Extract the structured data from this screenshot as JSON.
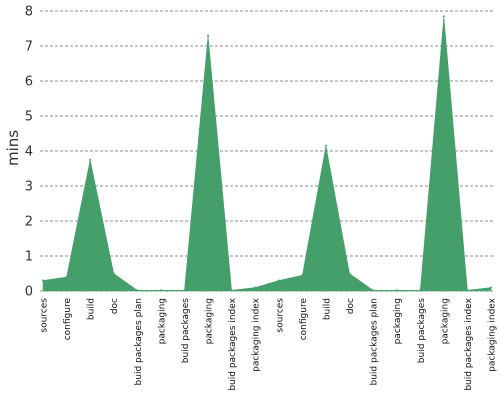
{
  "chart_data": {
    "type": "area",
    "ylabel": "mins",
    "ylim": [
      0,
      8
    ],
    "yticks": [
      "0",
      "1",
      "2",
      "3",
      "4",
      "5",
      "6",
      "7",
      "8"
    ],
    "grid": "horizontal dashed",
    "fill_color": "#449f6b",
    "grid_color": "#666666",
    "categories": [
      "sources",
      "configure",
      "build",
      "doc",
      "buid packages plan",
      "packaging",
      "buid packages",
      "packaging",
      "buid packages index",
      "packaging index",
      "sources",
      "configure",
      "build",
      "doc",
      "buid packages plan",
      "packaging",
      "buid packages",
      "packaging",
      "buid packages index",
      "packaging index"
    ],
    "values": [
      0.3,
      0.4,
      3.75,
      0.5,
      0.02,
      0.02,
      0.02,
      7.3,
      0.02,
      0.1,
      0.3,
      0.45,
      4.15,
      0.5,
      0.02,
      0.02,
      0.02,
      7.85,
      0.02,
      0.1
    ]
  }
}
